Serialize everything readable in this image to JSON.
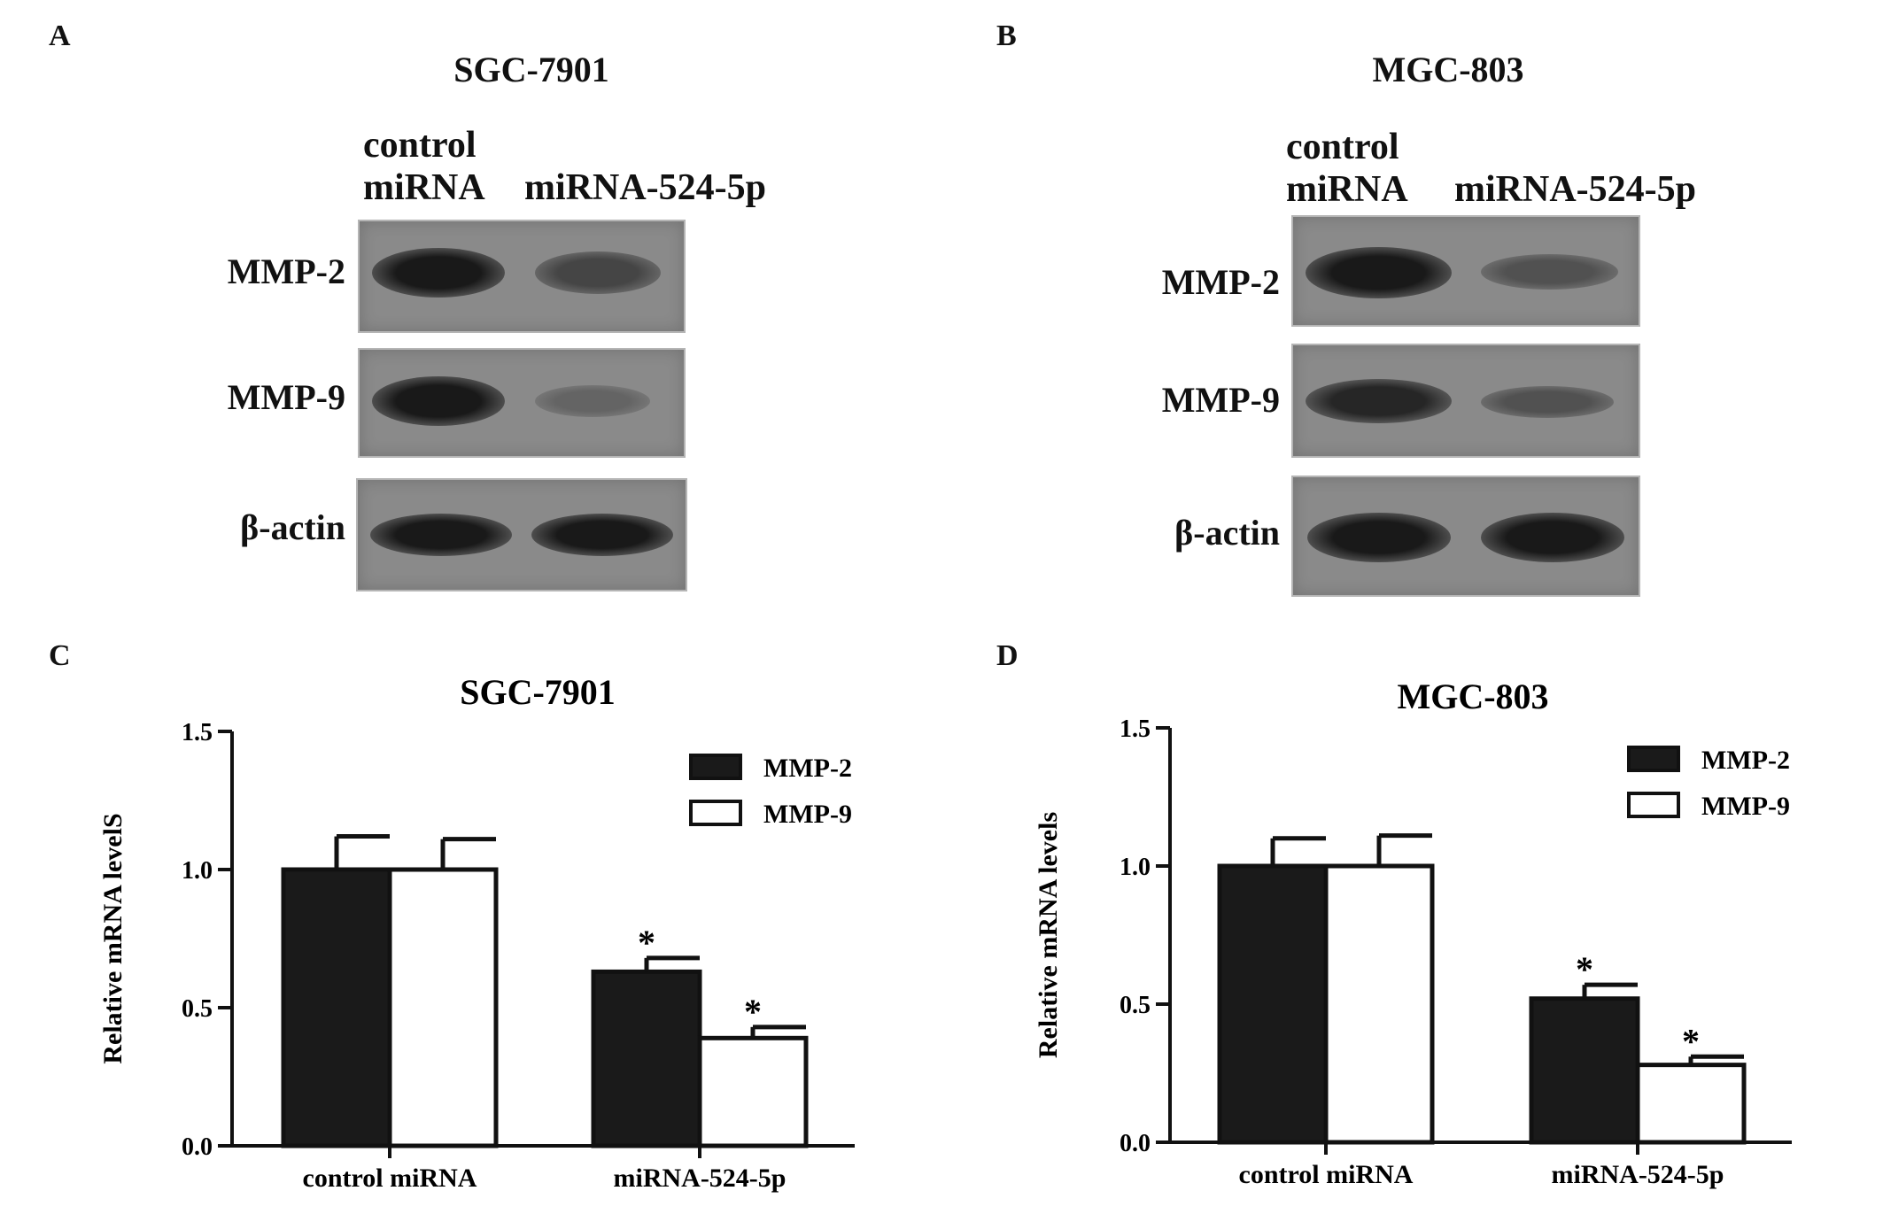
{
  "panels": {
    "a": {
      "letter": "A",
      "title": "SGC-7901",
      "lanes": {
        "control_line1": "control",
        "control_line2": "miRNA",
        "treated": "miRNA-524-5p"
      },
      "rows": [
        {
          "label": "MMP-2",
          "control_intensity": 1.0,
          "treated_intensity": 0.65
        },
        {
          "label": "MMP-9",
          "control_intensity": 1.0,
          "treated_intensity": 0.4
        },
        {
          "label": "β-actin",
          "control_intensity": 1.0,
          "treated_intensity": 1.0
        }
      ]
    },
    "b": {
      "letter": "B",
      "title": "MGC-803",
      "lanes": {
        "control_line1": "control",
        "control_line2": "miRNA",
        "treated": "miRNA-524-5p"
      },
      "rows": [
        {
          "label": "MMP-2",
          "control_intensity": 1.0,
          "treated_intensity": 0.55
        },
        {
          "label": "MMP-9",
          "control_intensity": 0.9,
          "treated_intensity": 0.55
        },
        {
          "label": "β-actin",
          "control_intensity": 1.0,
          "treated_intensity": 1.0
        }
      ]
    },
    "c": {
      "letter": "C"
    },
    "d": {
      "letter": "D"
    }
  },
  "chart_data": [
    {
      "type": "bar",
      "title": "SGC-7901",
      "ylabel": "Relative mRNA levelS",
      "xlabel": "",
      "categories": [
        "control miRNA",
        "miRNA-524-5p"
      ],
      "ylim": [
        0,
        1.5
      ],
      "yticks": [
        "0.0",
        "0.5",
        "1.0",
        "1.5"
      ],
      "legend_position": "top-right",
      "series": [
        {
          "name": "MMP-2",
          "values": [
            1.0,
            0.63
          ],
          "errors": [
            0.12,
            0.05
          ],
          "significance": [
            "",
            "*"
          ],
          "fill": "#1a1a1a"
        },
        {
          "name": "MMP-9",
          "values": [
            1.0,
            0.39
          ],
          "errors": [
            0.11,
            0.04
          ],
          "significance": [
            "",
            "*"
          ],
          "fill": "#ffffff"
        }
      ]
    },
    {
      "type": "bar",
      "title": "MGC-803",
      "ylabel": "Relative mRNA levels",
      "xlabel": "",
      "categories": [
        "control miRNA",
        "miRNA-524-5p"
      ],
      "ylim": [
        0,
        1.5
      ],
      "yticks": [
        "0.0",
        "0.5",
        "1.0",
        "1.5"
      ],
      "legend_position": "top-right",
      "series": [
        {
          "name": "MMP-2",
          "values": [
            1.0,
            0.52
          ],
          "errors": [
            0.1,
            0.05
          ],
          "significance": [
            "",
            "*"
          ],
          "fill": "#1a1a1a"
        },
        {
          "name": "MMP-9",
          "values": [
            1.0,
            0.28
          ],
          "errors": [
            0.11,
            0.03
          ],
          "significance": [
            "",
            "*"
          ],
          "fill": "#ffffff"
        }
      ]
    }
  ]
}
